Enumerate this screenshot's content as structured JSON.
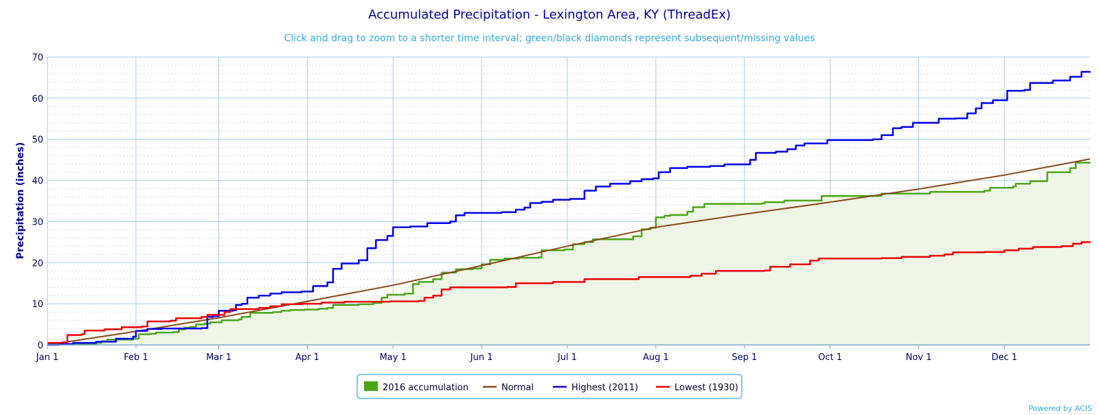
{
  "chart_data": {
    "type": "line",
    "title": "Accumulated Precipitation - Lexington Area, KY (ThreadEx)",
    "subtitle": "Click and drag to zoom to a shorter time interval; green/black diamonds represent subsequent/missing values",
    "xlabel": "",
    "ylabel": "Precipitation (inches)",
    "ylim": [
      0,
      70
    ],
    "yticks": [
      0,
      10,
      20,
      30,
      40,
      50,
      60,
      70
    ],
    "xlim": [
      "01-01",
      "12-31"
    ],
    "x_ticks": [
      {
        "label": "Jan 1",
        "date": "01-01"
      },
      {
        "label": "Feb 1",
        "date": "02-01"
      },
      {
        "label": "Mar 1",
        "date": "03-01"
      },
      {
        "label": "Apr 1",
        "date": "04-01"
      },
      {
        "label": "May 1",
        "date": "05-01"
      },
      {
        "label": "Jun 1",
        "date": "06-01"
      },
      {
        "label": "Jul 1",
        "date": "07-01"
      },
      {
        "label": "Aug 1",
        "date": "08-01"
      },
      {
        "label": "Sep 1",
        "date": "09-01"
      },
      {
        "label": "Oct 1",
        "date": "10-01"
      },
      {
        "label": "Nov 1",
        "date": "11-01"
      },
      {
        "label": "Dec 1",
        "date": "12-01"
      }
    ],
    "grid": true,
    "legend_position": "bottom-center",
    "series": [
      {
        "name": "2016 accumulation",
        "kind": "area",
        "color": "#4aa516",
        "fill": "#eef5e6",
        "points": [
          [
            "01-01",
            0.2
          ],
          [
            "01-10",
            0.3
          ],
          [
            "01-18",
            0.5
          ],
          [
            "01-20",
            0.9
          ],
          [
            "01-22",
            1.3
          ],
          [
            "01-31",
            1.5
          ],
          [
            "02-02",
            2.6
          ],
          [
            "02-06",
            2.7
          ],
          [
            "02-08",
            3.0
          ],
          [
            "02-14",
            3.1
          ],
          [
            "02-16",
            3.8
          ],
          [
            "02-18",
            4.2
          ],
          [
            "02-20",
            4.4
          ],
          [
            "02-22",
            5.0
          ],
          [
            "02-25",
            5.2
          ],
          [
            "02-27",
            5.5
          ],
          [
            "03-02",
            6.0
          ],
          [
            "03-08",
            6.2
          ],
          [
            "03-09",
            6.8
          ],
          [
            "03-12",
            7.8
          ],
          [
            "03-20",
            8.0
          ],
          [
            "03-23",
            8.3
          ],
          [
            "03-26",
            8.5
          ],
          [
            "03-31",
            8.6
          ],
          [
            "04-05",
            8.8
          ],
          [
            "04-08",
            9.0
          ],
          [
            "04-10",
            9.7
          ],
          [
            "04-19",
            9.9
          ],
          [
            "04-24",
            10.2
          ],
          [
            "04-27",
            11.5
          ],
          [
            "04-29",
            12.2
          ],
          [
            "05-05",
            12.5
          ],
          [
            "05-08",
            14.8
          ],
          [
            "05-10",
            15.3
          ],
          [
            "05-15",
            16.0
          ],
          [
            "05-18",
            17.6
          ],
          [
            "05-23",
            18.4
          ],
          [
            "05-29",
            18.6
          ],
          [
            "06-01",
            19.6
          ],
          [
            "06-04",
            20.7
          ],
          [
            "06-09",
            21.0
          ],
          [
            "06-14",
            21.2
          ],
          [
            "06-21",
            21.3
          ],
          [
            "06-22",
            23.0
          ],
          [
            "06-30",
            23.2
          ],
          [
            "07-03",
            24.5
          ],
          [
            "07-07",
            25.0
          ],
          [
            "07-10",
            25.7
          ],
          [
            "07-24",
            26.4
          ],
          [
            "07-27",
            28.1
          ],
          [
            "07-30",
            28.5
          ],
          [
            "08-01",
            31.0
          ],
          [
            "08-04",
            31.4
          ],
          [
            "08-06",
            31.6
          ],
          [
            "08-12",
            32.4
          ],
          [
            "08-14",
            33.5
          ],
          [
            "08-18",
            34.3
          ],
          [
            "09-07",
            34.4
          ],
          [
            "09-08",
            34.7
          ],
          [
            "09-15",
            35.1
          ],
          [
            "09-28",
            36.2
          ],
          [
            "10-18",
            36.3
          ],
          [
            "10-19",
            36.8
          ],
          [
            "11-05",
            37.2
          ],
          [
            "11-14",
            37.2
          ],
          [
            "11-24",
            37.5
          ],
          [
            "11-26",
            38.2
          ],
          [
            "12-04",
            38.5
          ],
          [
            "12-05",
            39.2
          ],
          [
            "12-10",
            39.8
          ],
          [
            "12-16",
            42.0
          ],
          [
            "12-24",
            43.0
          ],
          [
            "12-26",
            44.3
          ],
          [
            "12-31",
            44.4
          ]
        ]
      },
      {
        "name": "Normal",
        "kind": "line",
        "color": "#8b4513",
        "points": [
          [
            "01-01",
            0.0
          ],
          [
            "02-01",
            3.3
          ],
          [
            "03-01",
            6.6
          ],
          [
            "04-01",
            10.6
          ],
          [
            "05-01",
            14.5
          ],
          [
            "06-01",
            19.3
          ],
          [
            "07-01",
            24.0
          ],
          [
            "08-01",
            28.6
          ],
          [
            "09-01",
            31.8
          ],
          [
            "10-01",
            34.7
          ],
          [
            "11-01",
            37.9
          ],
          [
            "12-01",
            41.3
          ],
          [
            "12-31",
            45.2
          ]
        ]
      },
      {
        "name": "Highest (2011)",
        "kind": "line",
        "color": "#0000ee",
        "points": [
          [
            "01-01",
            0.0
          ],
          [
            "01-05",
            0.2
          ],
          [
            "01-10",
            0.5
          ],
          [
            "01-18",
            0.8
          ],
          [
            "01-25",
            1.5
          ],
          [
            "01-31",
            2.0
          ],
          [
            "02-01",
            3.4
          ],
          [
            "02-05",
            3.9
          ],
          [
            "02-10",
            4.0
          ],
          [
            "02-24",
            4.1
          ],
          [
            "02-26",
            6.8
          ],
          [
            "02-28",
            7.0
          ],
          [
            "03-01",
            8.3
          ],
          [
            "03-06",
            8.4
          ],
          [
            "03-07",
            9.7
          ],
          [
            "03-09",
            10.0
          ],
          [
            "03-11",
            11.5
          ],
          [
            "03-15",
            12.0
          ],
          [
            "03-19",
            12.5
          ],
          [
            "03-23",
            12.8
          ],
          [
            "03-30",
            13.0
          ],
          [
            "04-03",
            14.3
          ],
          [
            "04-08",
            15.2
          ],
          [
            "04-10",
            18.5
          ],
          [
            "04-13",
            19.8
          ],
          [
            "04-19",
            20.6
          ],
          [
            "04-22",
            23.5
          ],
          [
            "04-25",
            25.5
          ],
          [
            "04-29",
            26.5
          ],
          [
            "05-01",
            28.6
          ],
          [
            "05-07",
            28.8
          ],
          [
            "05-13",
            29.6
          ],
          [
            "05-21",
            30.0
          ],
          [
            "05-23",
            31.5
          ],
          [
            "05-26",
            32.1
          ],
          [
            "06-08",
            32.3
          ],
          [
            "06-13",
            32.9
          ],
          [
            "06-16",
            33.4
          ],
          [
            "06-18",
            34.5
          ],
          [
            "06-22",
            34.8
          ],
          [
            "06-26",
            35.3
          ],
          [
            "07-02",
            35.5
          ],
          [
            "07-07",
            37.5
          ],
          [
            "07-11",
            38.5
          ],
          [
            "07-16",
            39.2
          ],
          [
            "07-23",
            39.8
          ],
          [
            "07-27",
            40.3
          ],
          [
            "07-31",
            40.5
          ],
          [
            "08-02",
            42.0
          ],
          [
            "08-06",
            43.0
          ],
          [
            "08-12",
            43.3
          ],
          [
            "08-20",
            43.5
          ],
          [
            "08-25",
            43.9
          ],
          [
            "09-03",
            45.0
          ],
          [
            "09-05",
            46.7
          ],
          [
            "09-12",
            47.0
          ],
          [
            "09-16",
            47.6
          ],
          [
            "09-19",
            48.5
          ],
          [
            "09-22",
            49.0
          ],
          [
            "09-30",
            49.8
          ],
          [
            "10-16",
            50.0
          ],
          [
            "10-19",
            51.0
          ],
          [
            "10-23",
            52.7
          ],
          [
            "10-26",
            53.0
          ],
          [
            "10-30",
            54.0
          ],
          [
            "11-08",
            55.0
          ],
          [
            "11-14",
            55.1
          ],
          [
            "11-18",
            56.3
          ],
          [
            "11-21",
            57.5
          ],
          [
            "11-23",
            58.8
          ],
          [
            "11-27",
            59.5
          ],
          [
            "12-02",
            61.8
          ],
          [
            "12-08",
            62.0
          ],
          [
            "12-10",
            63.7
          ],
          [
            "12-18",
            64.3
          ],
          [
            "12-24",
            65.2
          ],
          [
            "12-28",
            66.4
          ],
          [
            "12-31",
            66.5
          ]
        ]
      },
      {
        "name": "Lowest (1930)",
        "kind": "line",
        "color": "#ee0000",
        "points": [
          [
            "01-01",
            0.5
          ],
          [
            "01-06",
            0.6
          ],
          [
            "01-08",
            2.4
          ],
          [
            "01-13",
            2.6
          ],
          [
            "01-14",
            3.5
          ],
          [
            "01-21",
            3.8
          ],
          [
            "01-27",
            4.3
          ],
          [
            "02-03",
            4.5
          ],
          [
            "02-05",
            5.7
          ],
          [
            "02-13",
            5.9
          ],
          [
            "02-15",
            6.5
          ],
          [
            "02-24",
            6.8
          ],
          [
            "02-26",
            7.3
          ],
          [
            "03-03",
            8.0
          ],
          [
            "03-05",
            8.7
          ],
          [
            "03-15",
            9.0
          ],
          [
            "03-19",
            9.4
          ],
          [
            "03-23",
            9.9
          ],
          [
            "03-30",
            10.0
          ],
          [
            "04-06",
            10.3
          ],
          [
            "04-14",
            10.5
          ],
          [
            "04-30",
            10.6
          ],
          [
            "05-10",
            10.7
          ],
          [
            "05-12",
            11.5
          ],
          [
            "05-15",
            12.0
          ],
          [
            "05-18",
            13.5
          ],
          [
            "05-21",
            14.0
          ],
          [
            "06-10",
            14.1
          ],
          [
            "06-13",
            15.0
          ],
          [
            "06-26",
            15.3
          ],
          [
            "07-07",
            16.0
          ],
          [
            "07-26",
            16.5
          ],
          [
            "08-13",
            16.8
          ],
          [
            "08-17",
            17.3
          ],
          [
            "08-22",
            18.0
          ],
          [
            "09-08",
            18.1
          ],
          [
            "09-10",
            19.0
          ],
          [
            "09-17",
            19.6
          ],
          [
            "09-24",
            20.5
          ],
          [
            "09-27",
            21.0
          ],
          [
            "10-19",
            21.1
          ],
          [
            "10-26",
            21.4
          ],
          [
            "11-05",
            21.7
          ],
          [
            "11-10",
            22.0
          ],
          [
            "11-13",
            22.5
          ],
          [
            "11-24",
            22.6
          ],
          [
            "12-01",
            23.0
          ],
          [
            "12-06",
            23.4
          ],
          [
            "12-11",
            23.8
          ],
          [
            "12-21",
            24.0
          ],
          [
            "12-25",
            24.6
          ],
          [
            "12-28",
            25.0
          ],
          [
            "12-31",
            25.1
          ]
        ]
      }
    ],
    "credits": "Powered by ACIS"
  }
}
